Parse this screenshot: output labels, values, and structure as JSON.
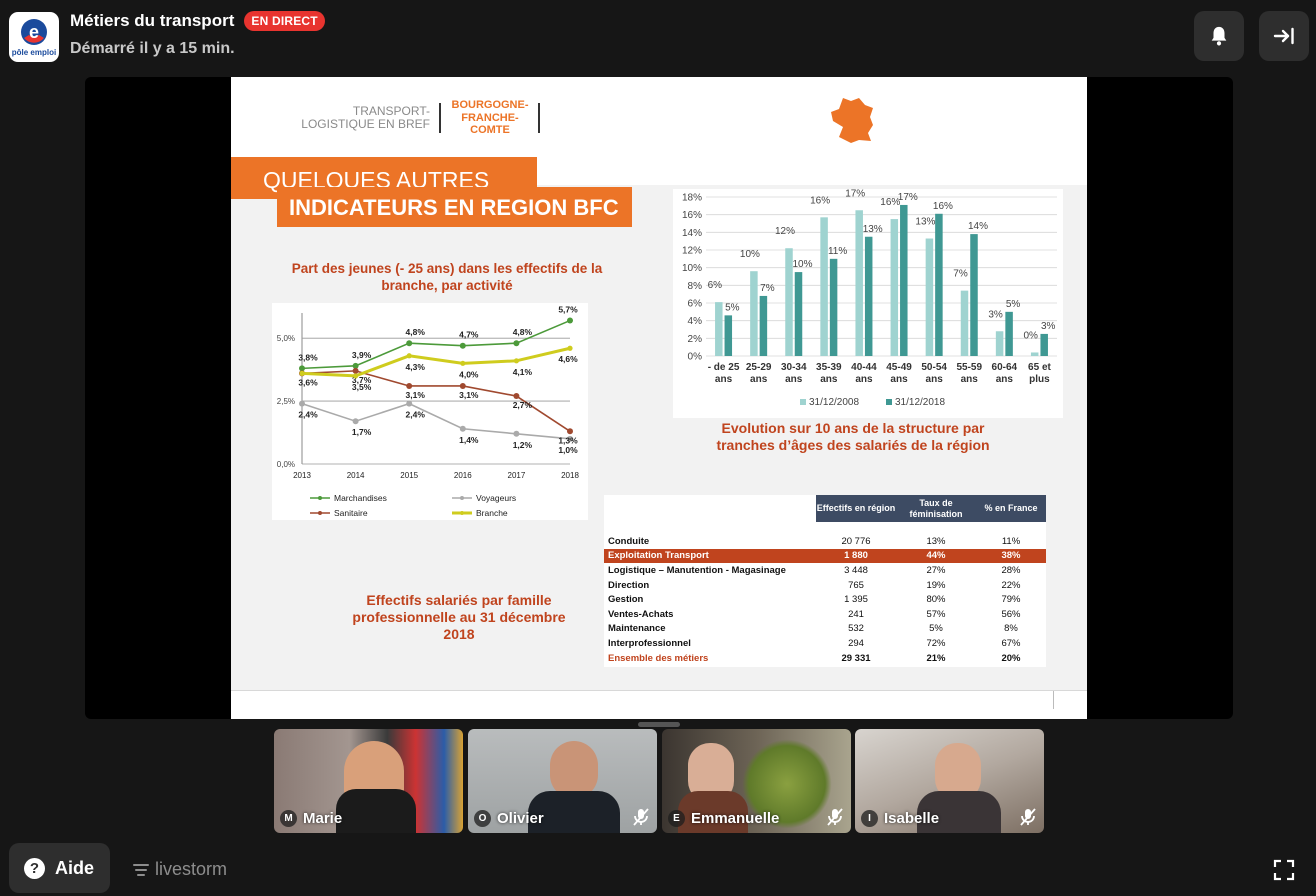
{
  "header": {
    "logo_text": "pôle emploi",
    "event_title": "Métiers du transport",
    "live_badge": "EN DIRECT",
    "started": "Démarré il y a 15 min.",
    "buttons": [
      {
        "name": "notifications-button",
        "icon": "bell-icon"
      },
      {
        "name": "leave-button",
        "icon": "exit-arrow-icon"
      }
    ]
  },
  "slide": {
    "brand_left": "TRANSPORT-LOGISTIQUE EN BREF",
    "brand_right": "BOURGOGNE-FRANCHE-COMTE",
    "banner_line1": "QUELQUES AUTRES",
    "banner_line2": "INDICATEURS EN REGION BFC",
    "line_chart_title": "Part des jeunes (- 25 ans) dans les effectifs de la branche, par activité",
    "bar_chart_title": "Evolution sur 10 ans de la structure par tranches d’âges des salariés de la région",
    "table_title": "Effectifs salariés par famille professionnelle au 31 décembre 2018",
    "accent": "#ec7427",
    "title_color": "#c0441e"
  },
  "chart_data": [
    {
      "type": "line",
      "x": [
        "2013",
        "2014",
        "2015",
        "2016",
        "2017",
        "2018"
      ],
      "ylim": [
        0,
        6
      ],
      "yticks": [
        "0,0%",
        "2,5%",
        "5,0%"
      ],
      "legend": "bottom",
      "series": [
        {
          "name": "Marchandises",
          "color": "#4c9a3a",
          "values": [
            3.8,
            3.9,
            4.8,
            4.7,
            4.8,
            5.7
          ],
          "labels": [
            "3,8%",
            "3,9%",
            "4,8%",
            "4,7%",
            "4,8%",
            "5,7%"
          ]
        },
        {
          "name": "Voyageurs",
          "color": "#aaaaaa",
          "values": [
            2.4,
            1.7,
            2.4,
            1.4,
            1.2,
            1.0
          ],
          "labels": [
            "2,4%",
            "1,7%",
            "2,4%",
            "1,4%",
            "1,2%",
            "1,0%"
          ]
        },
        {
          "name": "Sanitaire",
          "color": "#a0492f",
          "values": [
            3.6,
            3.7,
            3.1,
            3.1,
            2.7,
            1.3
          ],
          "labels": [
            "3,6%",
            "3,7%",
            "3,1%",
            "3,1%",
            "2,7%",
            "1,3%"
          ]
        },
        {
          "name": "Branche",
          "color": "#cfcc1e",
          "values": [
            3.6,
            3.5,
            4.3,
            4.0,
            4.1,
            4.6
          ],
          "labels": [
            "",
            "3,5%",
            "4,3%",
            "4,0%",
            "4,1%",
            "4,6%"
          ]
        }
      ]
    },
    {
      "type": "bar",
      "categories": [
        "- de 25 ans",
        "25-29 ans",
        "30-34 ans",
        "35-39 ans",
        "40-44 ans",
        "45-49 ans",
        "50-54 ans",
        "55-59 ans",
        "60-64 ans",
        "65 et plus"
      ],
      "ylim": [
        0,
        18
      ],
      "yticks": [
        "0%",
        "2%",
        "4%",
        "6%",
        "8%",
        "10%",
        "12%",
        "14%",
        "16%",
        "18%"
      ],
      "legend": "bottom",
      "series": [
        {
          "name": "31/12/2008",
          "color": "#9fd3d0",
          "values": [
            6.1,
            9.6,
            12.2,
            15.7,
            16.5,
            15.5,
            13.3,
            7.4,
            2.8,
            0.4
          ],
          "labels": [
            "6%",
            "10%",
            "12%",
            "16%",
            "17%",
            "16%",
            "13%",
            "7%",
            "3%",
            "0%"
          ]
        },
        {
          "name": "31/12/2018",
          "color": "#3f9893",
          "values": [
            4.6,
            6.8,
            9.5,
            11.0,
            13.5,
            17.1,
            16.1,
            13.8,
            5.0,
            2.5
          ],
          "labels": [
            "5%",
            "7%",
            "10%",
            "11%",
            "13%",
            "17%",
            "16%",
            "14%",
            "5%",
            "3%"
          ]
        }
      ]
    },
    {
      "type": "table",
      "columns": [
        "Effectifs en région",
        "Taux de féminisation",
        "% en France"
      ],
      "rows": [
        {
          "label": "Conduite",
          "values": [
            "20 776",
            "13%",
            "11%"
          ]
        },
        {
          "label": "Exploitation Transport",
          "values": [
            "1 880",
            "44%",
            "38%"
          ],
          "highlight": true
        },
        {
          "label": "Logistique – Manutention - Magasinage",
          "values": [
            "3 448",
            "27%",
            "28%"
          ]
        },
        {
          "label": "Direction",
          "values": [
            "765",
            "19%",
            "22%"
          ]
        },
        {
          "label": "Gestion",
          "values": [
            "1 395",
            "80%",
            "79%"
          ]
        },
        {
          "label": "Ventes-Achats",
          "values": [
            "241",
            "57%",
            "56%"
          ]
        },
        {
          "label": "Maintenance",
          "values": [
            "532",
            "5%",
            "8%"
          ]
        },
        {
          "label": "Interprofessionnel",
          "values": [
            "294",
            "72%",
            "67%"
          ]
        },
        {
          "label": "Ensemble des métiers",
          "values": [
            "29 331",
            "21%",
            "20%"
          ],
          "total": true
        }
      ]
    }
  ],
  "participants": [
    {
      "initial": "M",
      "name": "Marie",
      "muted": false,
      "bg": "#6b5a58"
    },
    {
      "initial": "O",
      "name": "Olivier",
      "muted": true,
      "bg": "#8a8f90"
    },
    {
      "initial": "E",
      "name": "Emmanuelle",
      "muted": true,
      "bg": "#5e5a4c"
    },
    {
      "initial": "I",
      "name": "Isabelle",
      "muted": true,
      "bg": "#9c8f86"
    }
  ],
  "footer": {
    "help_label": "Aide",
    "powered_by": "livestorm"
  }
}
